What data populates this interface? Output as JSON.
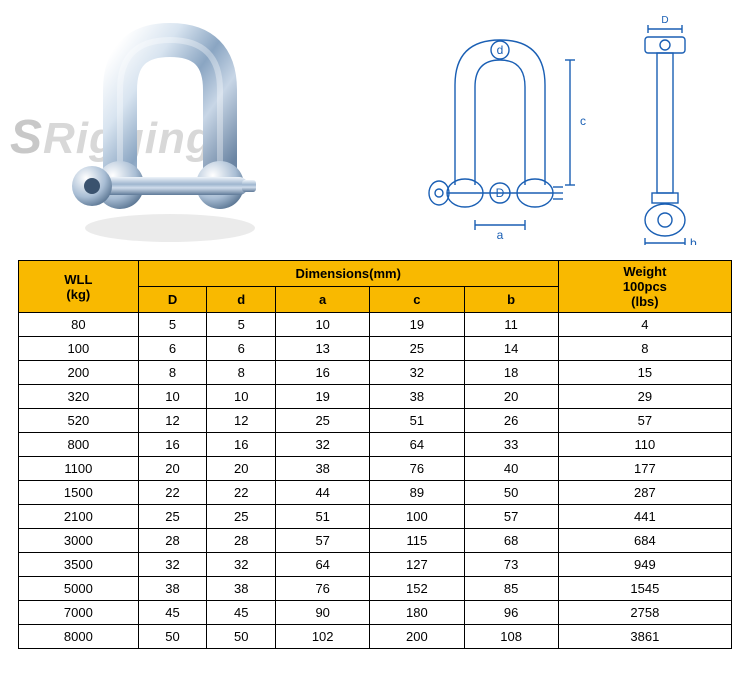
{
  "watermark": {
    "part1": "S",
    "part2": "Rigging"
  },
  "table": {
    "header_bg": "#f9b900",
    "border_color": "#000000",
    "col_wll": "WLL\n(kg)",
    "col_dimensions": "Dimensions(mm)",
    "col_D": "D",
    "col_d": "d",
    "col_a": "a",
    "col_c": "c",
    "col_b": "b",
    "col_weight": "Weight\n100pcs\n(lbs)",
    "rows": [
      {
        "wll": "80",
        "D": "5",
        "d": "5",
        "a": "10",
        "c": "19",
        "b": "11",
        "w": "4"
      },
      {
        "wll": "100",
        "D": "6",
        "d": "6",
        "a": "13",
        "c": "25",
        "b": "14",
        "w": "8"
      },
      {
        "wll": "200",
        "D": "8",
        "d": "8",
        "a": "16",
        "c": "32",
        "b": "18",
        "w": "15"
      },
      {
        "wll": "320",
        "D": "10",
        "d": "10",
        "a": "19",
        "c": "38",
        "b": "20",
        "w": "29"
      },
      {
        "wll": "520",
        "D": "12",
        "d": "12",
        "a": "25",
        "c": "51",
        "b": "26",
        "w": "57"
      },
      {
        "wll": "800",
        "D": "16",
        "d": "16",
        "a": "32",
        "c": "64",
        "b": "33",
        "w": "110"
      },
      {
        "wll": "1100",
        "D": "20",
        "d": "20",
        "a": "38",
        "c": "76",
        "b": "40",
        "w": "177"
      },
      {
        "wll": "1500",
        "D": "22",
        "d": "22",
        "a": "44",
        "c": "89",
        "b": "50",
        "w": "287"
      },
      {
        "wll": "2100",
        "D": "25",
        "d": "25",
        "a": "51",
        "c": "100",
        "b": "57",
        "w": "441"
      },
      {
        "wll": "3000",
        "D": "28",
        "d": "28",
        "a": "57",
        "c": "115",
        "b": "68",
        "w": "684"
      },
      {
        "wll": "3500",
        "D": "32",
        "d": "32",
        "a": "64",
        "c": "127",
        "b": "73",
        "w": "949"
      },
      {
        "wll": "5000",
        "D": "38",
        "d": "38",
        "a": "76",
        "c": "152",
        "b": "85",
        "w": "1545"
      },
      {
        "wll": "7000",
        "D": "45",
        "d": "45",
        "a": "90",
        "c": "180",
        "b": "96",
        "w": "2758"
      },
      {
        "wll": "8000",
        "D": "50",
        "d": "50",
        "a": "102",
        "c": "200",
        "b": "108",
        "w": "3861"
      }
    ]
  },
  "diagram": {
    "stroke": "#1a5fb4",
    "labels": {
      "D": "D",
      "d": "d",
      "a": "a",
      "c": "c",
      "b": "b"
    }
  }
}
